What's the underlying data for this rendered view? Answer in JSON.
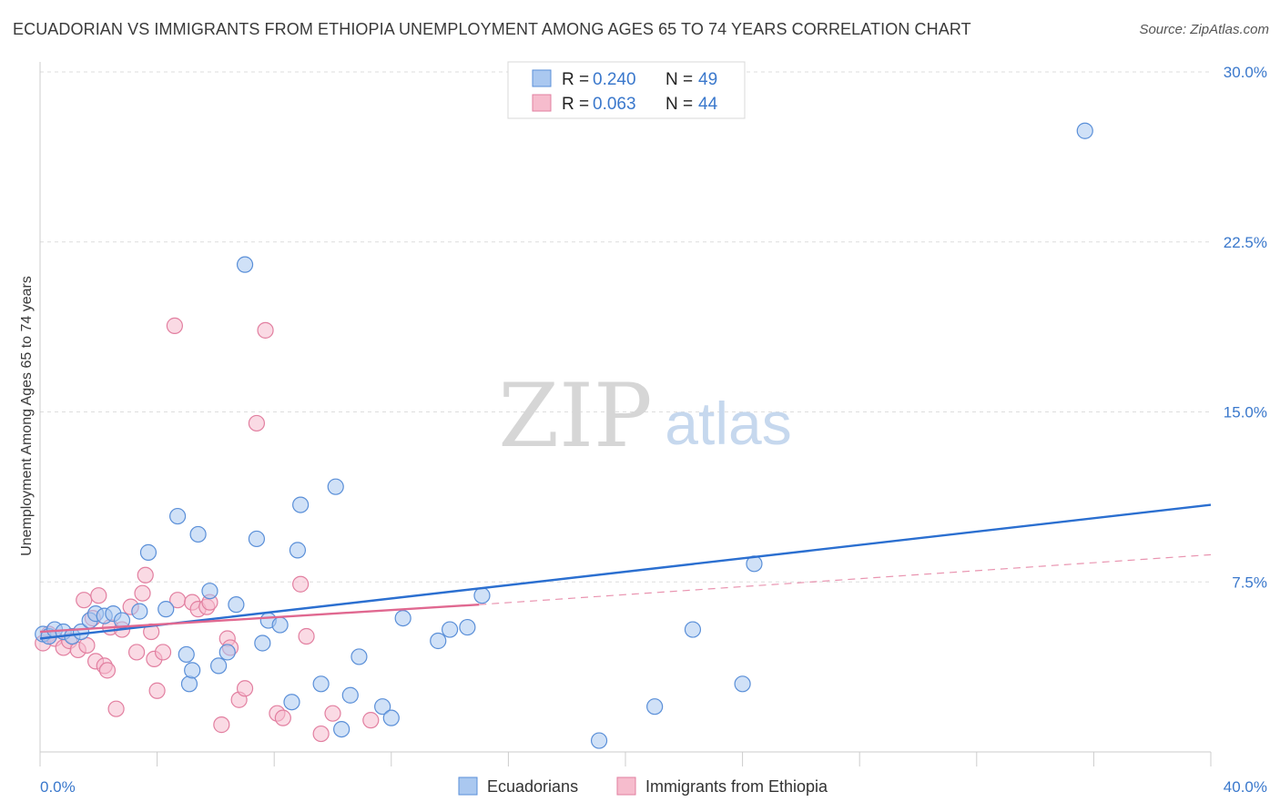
{
  "header": {
    "title": "ECUADORIAN VS IMMIGRANTS FROM ETHIOPIA UNEMPLOYMENT AMONG AGES 65 TO 74 YEARS CORRELATION CHART",
    "source": "Source: ZipAtlas.com"
  },
  "watermark": {
    "zip": "ZIP",
    "atlas": "atlas"
  },
  "colors": {
    "blue_fill": "#aac8f0",
    "blue_stroke": "#5a8fd8",
    "blue_line": "#2b6fd0",
    "pink_fill": "#f6bccd",
    "pink_stroke": "#e27fa0",
    "pink_line": "#e06890",
    "axis_text": "#3a78cc",
    "grid": "#dddddd"
  },
  "chart_data": {
    "type": "scatter",
    "title": "ECUADORIAN VS IMMIGRANTS FROM ETHIOPIA UNEMPLOYMENT AMONG AGES 65 TO 74 YEARS CORRELATION CHART",
    "xlabel": "",
    "ylabel": "Unemployment Among Ages 65 to 74 years",
    "xlim": [
      0,
      40
    ],
    "ylim": [
      0,
      30
    ],
    "x_tick_labels": [
      "0.0%",
      "40.0%"
    ],
    "y_ticks": [
      7.5,
      15.0,
      22.5,
      30.0
    ],
    "y_tick_labels": [
      "7.5%",
      "15.0%",
      "22.5%",
      "30.0%"
    ],
    "legend_stats": [
      {
        "r_label": "R =",
        "r": "0.240",
        "n_label": "N =",
        "n": "49"
      },
      {
        "r_label": "R =",
        "r": "0.063",
        "n_label": "N =",
        "n": "44"
      }
    ],
    "series": [
      {
        "name": "Ecuadorians",
        "points": [
          [
            0.1,
            5.2
          ],
          [
            0.3,
            5.1
          ],
          [
            0.5,
            5.4
          ],
          [
            0.8,
            5.3
          ],
          [
            1.1,
            5.1
          ],
          [
            1.4,
            5.3
          ],
          [
            1.7,
            5.8
          ],
          [
            1.9,
            6.1
          ],
          [
            2.2,
            6.0
          ],
          [
            2.5,
            6.1
          ],
          [
            2.8,
            5.8
          ],
          [
            3.4,
            6.2
          ],
          [
            3.7,
            8.8
          ],
          [
            4.3,
            6.3
          ],
          [
            4.7,
            10.4
          ],
          [
            5.0,
            4.3
          ],
          [
            5.1,
            3.0
          ],
          [
            5.2,
            3.6
          ],
          [
            5.4,
            9.6
          ],
          [
            5.8,
            7.1
          ],
          [
            6.1,
            3.8
          ],
          [
            6.4,
            4.4
          ],
          [
            6.7,
            6.5
          ],
          [
            7.0,
            21.5
          ],
          [
            7.4,
            9.4
          ],
          [
            7.6,
            4.8
          ],
          [
            7.8,
            5.8
          ],
          [
            8.2,
            5.6
          ],
          [
            8.6,
            2.2
          ],
          [
            8.8,
            8.9
          ],
          [
            8.9,
            10.9
          ],
          [
            9.6,
            3.0
          ],
          [
            10.1,
            11.7
          ],
          [
            10.3,
            1.0
          ],
          [
            10.6,
            2.5
          ],
          [
            10.9,
            4.2
          ],
          [
            11.7,
            2.0
          ],
          [
            12.0,
            1.5
          ],
          [
            12.4,
            5.9
          ],
          [
            13.6,
            4.9
          ],
          [
            14.0,
            5.4
          ],
          [
            14.6,
            5.5
          ],
          [
            15.1,
            6.9
          ],
          [
            19.1,
            0.5
          ],
          [
            21.0,
            2.0
          ],
          [
            22.3,
            5.4
          ],
          [
            24.0,
            3.0
          ],
          [
            24.4,
            8.3
          ],
          [
            35.7,
            27.4
          ]
        ],
        "trend": {
          "x0": 0,
          "y0": 5.0,
          "x1": 40,
          "y1": 10.9
        }
      },
      {
        "name": "Immigrants from Ethiopia",
        "points": [
          [
            0.1,
            4.8
          ],
          [
            0.3,
            5.2
          ],
          [
            0.5,
            5.0
          ],
          [
            0.8,
            4.6
          ],
          [
            1.0,
            4.9
          ],
          [
            1.3,
            4.5
          ],
          [
            1.5,
            6.7
          ],
          [
            1.6,
            4.7
          ],
          [
            1.8,
            5.9
          ],
          [
            1.9,
            4.0
          ],
          [
            2.0,
            6.9
          ],
          [
            2.2,
            3.8
          ],
          [
            2.3,
            3.6
          ],
          [
            2.4,
            5.5
          ],
          [
            2.6,
            1.9
          ],
          [
            2.8,
            5.4
          ],
          [
            3.1,
            6.4
          ],
          [
            3.3,
            4.4
          ],
          [
            3.5,
            7.0
          ],
          [
            3.6,
            7.8
          ],
          [
            3.8,
            5.3
          ],
          [
            3.9,
            4.1
          ],
          [
            4.0,
            2.7
          ],
          [
            4.2,
            4.4
          ],
          [
            4.6,
            18.8
          ],
          [
            4.7,
            6.7
          ],
          [
            5.2,
            6.6
          ],
          [
            5.4,
            6.3
          ],
          [
            5.7,
            6.4
          ],
          [
            5.8,
            6.6
          ],
          [
            6.2,
            1.2
          ],
          [
            6.4,
            5.0
          ],
          [
            6.5,
            4.6
          ],
          [
            6.8,
            2.3
          ],
          [
            7.0,
            2.8
          ],
          [
            7.4,
            14.5
          ],
          [
            7.7,
            18.6
          ],
          [
            8.1,
            1.7
          ],
          [
            8.3,
            1.5
          ],
          [
            8.9,
            7.4
          ],
          [
            9.1,
            5.1
          ],
          [
            9.6,
            0.8
          ],
          [
            10.0,
            1.7
          ],
          [
            11.3,
            1.4
          ]
        ],
        "trend": {
          "x0": 0,
          "y0": 5.3,
          "x1": 15.0,
          "y1": 6.5
        },
        "trend_dashed": {
          "x0": 15.0,
          "y0": 6.5,
          "x1": 40,
          "y1": 8.7
        }
      }
    ]
  }
}
